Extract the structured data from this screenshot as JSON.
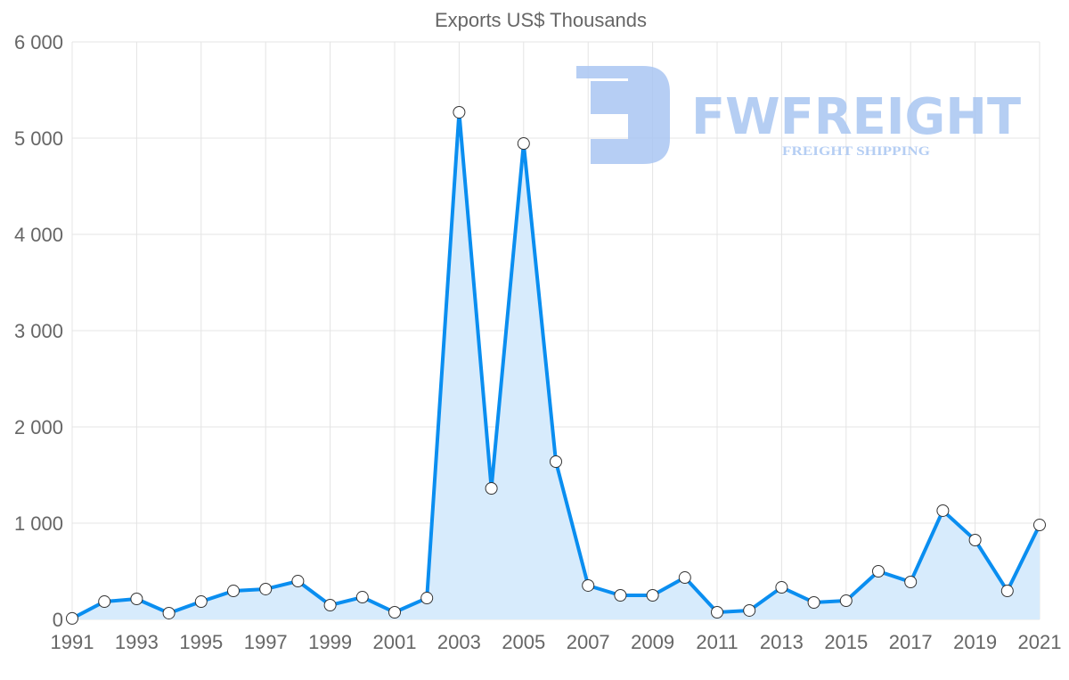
{
  "chart_data": {
    "type": "area",
    "title": "Exports US$ Thousands",
    "xlabel": "",
    "ylabel": "",
    "ylim": [
      0,
      6000
    ],
    "yticks": [
      0,
      1000,
      2000,
      3000,
      4000,
      5000,
      6000
    ],
    "ytick_labels": [
      "0",
      "1 000",
      "2 000",
      "3 000",
      "4 000",
      "5 000",
      "6 000"
    ],
    "xtick_labels": [
      "1991",
      "1993",
      "1995",
      "1997",
      "1999",
      "2001",
      "2003",
      "2005",
      "2007",
      "2009",
      "2011",
      "2013",
      "2015",
      "2017",
      "2019",
      "2021"
    ],
    "grid": true,
    "x": [
      1991,
      1992,
      1993,
      1994,
      1995,
      1996,
      1997,
      1998,
      1999,
      2000,
      2001,
      2002,
      2003,
      2004,
      2005,
      2006,
      2007,
      2008,
      2009,
      2010,
      2011,
      2012,
      2013,
      2014,
      2015,
      2016,
      2017,
      2018,
      2019,
      2020,
      2021
    ],
    "series": [
      {
        "name": "Exports US$ Thousands",
        "values": [
          10,
          185,
          213,
          65,
          185,
          296,
          315,
          398,
          148,
          231,
          74,
          222,
          5269,
          1361,
          4944,
          1639,
          352,
          250,
          250,
          435,
          74,
          93,
          333,
          176,
          194,
          500,
          389,
          1130,
          824,
          296,
          981
        ],
        "color": "#0a8ef0",
        "fill": "#d7ebfc"
      }
    ]
  },
  "watermark": {
    "brand": "FWFREIGHT",
    "tagline": "FREIGHT SHIPPING",
    "color": "#a9c6f2"
  }
}
